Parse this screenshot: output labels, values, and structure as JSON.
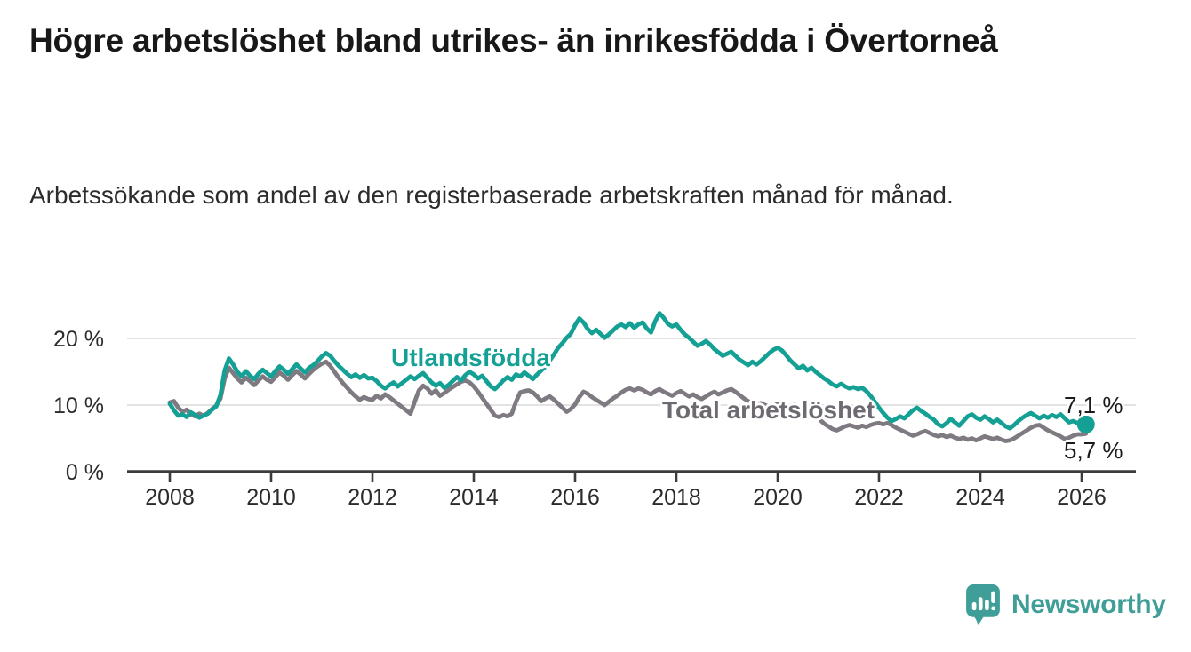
{
  "header": {
    "title": "Högre arbetslöshet bland utrikes- än inrikesfödda i Övertorneå",
    "subtitle": "Arbetssökande som andel av den registerbaserade arbetskraften månad för månad."
  },
  "chart_data": {
    "type": "line",
    "unit": "%",
    "x_start_year": 2008,
    "x_step": "1 month",
    "x_end": "2026-02",
    "x_ticks": [
      "2008",
      "2010",
      "2012",
      "2014",
      "2016",
      "2018",
      "2020",
      "2022",
      "2024",
      "2026"
    ],
    "y_ticks": [
      {
        "value": 0,
        "label": "0 %"
      },
      {
        "value": 10,
        "label": "10 %"
      },
      {
        "value": 20,
        "label": "20 %"
      }
    ],
    "ylim": [
      0,
      24.8
    ],
    "grid": "horizontal",
    "legend_position": "inline-labels",
    "series": [
      {
        "name": "Utlandsfödda",
        "color": "#14a094",
        "end_label": "7,1 %",
        "end_value": 7.1,
        "end_dot": true,
        "values": [
          10.2,
          9.2,
          8.4,
          8.6,
          8.2,
          8.9,
          8.5,
          8.1,
          8.4,
          8.7,
          9.3,
          9.8,
          11.5,
          15.2,
          17.0,
          16.1,
          15.0,
          14.3,
          15.1,
          14.4,
          13.9,
          14.7,
          15.3,
          14.8,
          14.3,
          15.1,
          15.8,
          15.3,
          14.7,
          15.4,
          16.1,
          15.5,
          14.9,
          15.6,
          16.0,
          16.6,
          17.3,
          17.8,
          17.4,
          16.6,
          15.9,
          15.3,
          14.7,
          14.2,
          14.6,
          14.1,
          14.5,
          14.0,
          14.1,
          13.6,
          12.9,
          12.5,
          13.0,
          13.4,
          12.8,
          13.3,
          13.8,
          14.3,
          13.9,
          14.4,
          14.8,
          14.1,
          13.4,
          12.9,
          13.3,
          12.6,
          13.0,
          13.6,
          14.2,
          13.7,
          14.5,
          15.0,
          14.6,
          14.0,
          14.4,
          13.6,
          12.8,
          12.4,
          13.0,
          13.7,
          14.2,
          13.8,
          14.6,
          14.3,
          14.9,
          14.4,
          13.9,
          14.6,
          15.2,
          15.8,
          16.7,
          17.6,
          18.6,
          19.3,
          20.1,
          20.7,
          22.0,
          23.0,
          22.4,
          21.4,
          20.8,
          21.3,
          20.7,
          20.1,
          20.6,
          21.2,
          21.8,
          22.1,
          21.7,
          22.3,
          21.6,
          22.1,
          22.4,
          21.5,
          20.9,
          22.6,
          23.8,
          23.1,
          22.2,
          21.8,
          22.1,
          21.3,
          20.6,
          20.1,
          19.5,
          18.9,
          19.2,
          19.6,
          19.1,
          18.4,
          17.9,
          17.4,
          17.7,
          18.0,
          17.4,
          16.8,
          16.4,
          16.0,
          16.5,
          16.1,
          16.6,
          17.2,
          17.8,
          18.3,
          18.6,
          18.2,
          17.5,
          16.7,
          16.1,
          15.5,
          15.9,
          15.2,
          15.6,
          15.0,
          14.5,
          14.0,
          13.6,
          13.1,
          12.8,
          13.2,
          12.8,
          12.5,
          12.7,
          12.4,
          12.6,
          12.1,
          11.4,
          10.5,
          9.6,
          8.8,
          8.1,
          7.6,
          7.9,
          8.3,
          8.0,
          8.6,
          9.2,
          9.6,
          9.1,
          8.7,
          8.2,
          7.8,
          7.1,
          6.8,
          7.3,
          7.9,
          7.4,
          6.9,
          7.6,
          8.3,
          8.6,
          8.1,
          7.8,
          8.3,
          7.9,
          7.4,
          7.8,
          7.3,
          6.8,
          6.5,
          7.0,
          7.6,
          8.1,
          8.5,
          8.8,
          8.4,
          8.0,
          8.4,
          8.1,
          8.5,
          8.2,
          8.6,
          8.0,
          7.4,
          7.6,
          7.3,
          7.5,
          7.1
        ]
      },
      {
        "name": "Total arbetslöshet",
        "color": "#7f7a81",
        "end_label": "5,7 %",
        "end_value": 5.7,
        "end_dot": false,
        "values": [
          10.4,
          10.6,
          9.6,
          9.0,
          9.3,
          8.6,
          8.3,
          8.7,
          8.4,
          8.8,
          9.4,
          9.9,
          11.0,
          14.0,
          15.6,
          14.8,
          14.0,
          13.4,
          14.1,
          13.6,
          13.0,
          13.7,
          14.3,
          13.8,
          13.5,
          14.2,
          14.9,
          14.4,
          13.8,
          14.5,
          15.1,
          14.6,
          14.0,
          14.7,
          15.3,
          15.8,
          16.2,
          16.5,
          15.9,
          15.0,
          14.1,
          13.3,
          12.6,
          11.9,
          11.3,
          10.8,
          11.2,
          10.9,
          10.8,
          11.4,
          11.0,
          11.6,
          11.2,
          10.7,
          10.2,
          9.7,
          9.2,
          8.7,
          10.5,
          12.2,
          12.9,
          12.5,
          11.7,
          12.2,
          11.4,
          11.8,
          12.3,
          12.7,
          13.1,
          13.5,
          13.7,
          13.4,
          12.8,
          12.0,
          11.1,
          10.2,
          9.3,
          8.4,
          8.2,
          8.5,
          8.3,
          8.7,
          10.5,
          11.9,
          12.1,
          12.2,
          11.9,
          11.3,
          10.6,
          11.0,
          11.3,
          10.8,
          10.2,
          9.6,
          9.0,
          9.4,
          10.1,
          11.2,
          12.0,
          11.7,
          11.2,
          10.8,
          10.4,
          10.0,
          10.5,
          11.0,
          11.4,
          11.9,
          12.3,
          12.5,
          12.2,
          12.5,
          12.3,
          11.9,
          11.6,
          12.1,
          12.4,
          12.0,
          11.7,
          11.4,
          11.8,
          12.1,
          11.7,
          11.3,
          11.6,
          11.2,
          10.9,
          11.3,
          11.7,
          12.0,
          11.6,
          11.9,
          12.2,
          12.4,
          12.0,
          11.5,
          11.0,
          10.6,
          10.2,
          10.0,
          10.3,
          10.0,
          9.7,
          9.9,
          10.2,
          10.0,
          9.6,
          9.9,
          10.1,
          9.7,
          9.4,
          9.0,
          8.7,
          8.3,
          7.8,
          7.2,
          6.8,
          6.4,
          6.2,
          6.5,
          6.8,
          7.0,
          6.8,
          6.6,
          6.9,
          6.7,
          7.0,
          7.2,
          7.3,
          7.1,
          7.3,
          7.0,
          6.6,
          6.3,
          6.0,
          5.7,
          5.4,
          5.6,
          5.9,
          6.1,
          5.8,
          5.5,
          5.3,
          5.5,
          5.2,
          5.4,
          5.1,
          4.9,
          5.1,
          4.8,
          5.0,
          4.7,
          5.0,
          5.3,
          5.1,
          4.9,
          5.1,
          4.8,
          4.6,
          4.7,
          5.0,
          5.4,
          5.8,
          6.2,
          6.6,
          6.9,
          7.0,
          6.6,
          6.2,
          5.9,
          5.6,
          5.3,
          4.9,
          5.1,
          5.4,
          5.6,
          5.6,
          5.7
        ]
      }
    ]
  },
  "footer": {
    "brand": "Newsworthy"
  },
  "colors": {
    "teal_line": "#14a094",
    "gray_line": "#7f7a81",
    "teal_label": "#14a094",
    "gray_label": "#6e6a71",
    "grid": "#dadada",
    "axis": "#3b3b3b",
    "tick_text": "#2b2b2b",
    "value_text": "#1b1b1b",
    "brand_teal": "#3f9e98"
  }
}
